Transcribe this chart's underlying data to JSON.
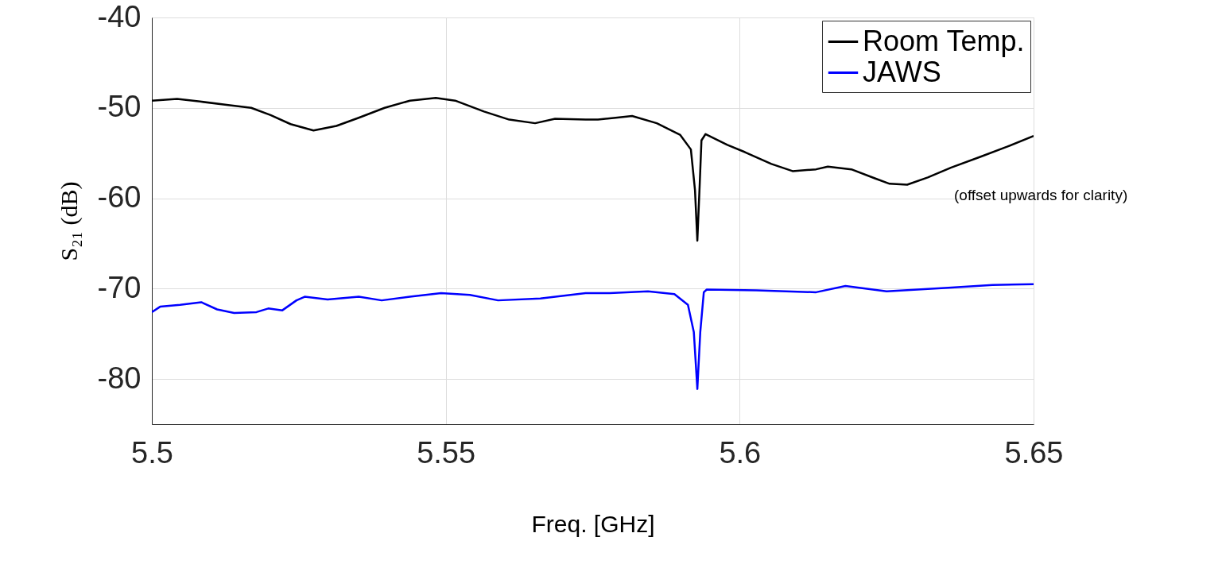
{
  "chart_data": {
    "type": "line",
    "xlabel": "Freq. [GHz]",
    "ylabel": "S₂₁ (dB)",
    "xlim": [
      5.5,
      5.65
    ],
    "xticks": [
      5.5,
      5.55,
      5.6,
      5.65
    ],
    "ylim": [
      -85,
      -40
    ],
    "yticks": [
      -80,
      -70,
      -60,
      -50,
      -40
    ],
    "grid": true,
    "legend": "top right",
    "line_style": "solid",
    "marker": "none",
    "annotations": [
      "(offset upwards for clarity)"
    ],
    "series": [
      {
        "name": "Room Temp.",
        "color": "#000000",
        "x": [
          5.5,
          5.5043,
          5.5082,
          5.513,
          5.5169,
          5.5202,
          5.5236,
          5.5275,
          5.5314,
          5.5352,
          5.5396,
          5.5439,
          5.5483,
          5.5516,
          5.5565,
          5.5608,
          5.5652,
          5.5686,
          5.5738,
          5.5759,
          5.5789,
          5.5817,
          5.5859,
          5.5899,
          5.5917,
          5.5924,
          5.5928,
          5.5932,
          5.5935,
          5.5942,
          5.5979,
          5.6009,
          5.6054,
          5.609,
          5.613,
          5.615,
          5.619,
          5.623,
          5.6255,
          5.6285,
          5.632,
          5.636,
          5.641,
          5.6455,
          5.65
        ],
        "values": [
          -49.2,
          -49.0,
          -49.3,
          -49.7,
          -50.0,
          -50.8,
          -51.8,
          -52.5,
          -52.0,
          -51.1,
          -50.0,
          -49.2,
          -48.9,
          -49.2,
          -50.4,
          -51.3,
          -51.7,
          -51.2,
          -51.3,
          -51.3,
          -51.1,
          -50.9,
          -51.7,
          -53.0,
          -54.6,
          -59.1,
          -64.7,
          -58.5,
          -53.6,
          -52.9,
          -54.1,
          -54.9,
          -56.2,
          -57.0,
          -56.8,
          -56.5,
          -56.8,
          -57.8,
          -58.4,
          -58.5,
          -57.7,
          -56.6,
          -55.4,
          -54.3,
          -53.1
        ]
      },
      {
        "name": "JAWS",
        "color": "#0000ff",
        "x": [
          5.5,
          5.5014,
          5.5048,
          5.5084,
          5.5111,
          5.514,
          5.5178,
          5.5198,
          5.5222,
          5.5246,
          5.526,
          5.5299,
          5.5352,
          5.5391,
          5.5439,
          5.5492,
          5.5541,
          5.5589,
          5.5661,
          5.5738,
          5.5779,
          5.5844,
          5.5889,
          5.5912,
          5.5922,
          5.5928,
          5.5933,
          5.5939,
          5.5944,
          5.6029,
          5.613,
          5.618,
          5.625,
          5.6355,
          5.643,
          5.65
        ],
        "values": [
          -72.6,
          -72.0,
          -71.8,
          -71.5,
          -72.3,
          -72.7,
          -72.6,
          -72.2,
          -72.4,
          -71.3,
          -70.9,
          -71.2,
          -70.9,
          -71.3,
          -70.9,
          -70.5,
          -70.7,
          -71.3,
          -71.1,
          -70.5,
          -70.5,
          -70.3,
          -70.6,
          -71.8,
          -74.8,
          -81.1,
          -74.8,
          -70.4,
          -70.1,
          -70.2,
          -70.4,
          -69.7,
          -70.3,
          -69.9,
          -69.6,
          -69.5
        ]
      }
    ]
  }
}
